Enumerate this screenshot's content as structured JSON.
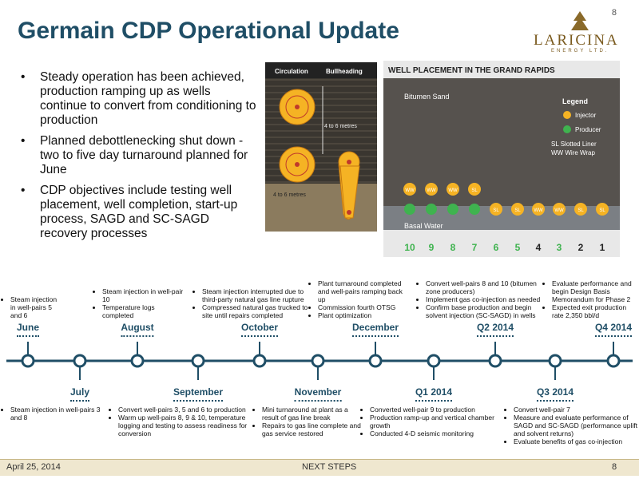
{
  "page_number_top": "8",
  "title": "Germain CDP Operational Update",
  "logo": {
    "name": "LARICINA",
    "tagline": "ENERGY LTD."
  },
  "bullets": [
    "Steady operation has been achieved, production ramping up as wells continue to convert from conditioning to production",
    "Planned debottlenecking shut down - two to five day turnaround planned for June",
    "CDP objectives include testing well placement, well completion, start-up process, SAGD and SC-SAGD recovery processes"
  ],
  "well_diagram": {
    "labels": [
      "Circulation",
      "Bullheading"
    ],
    "dimension_labels": [
      "4 to 6 metres",
      "4 to 6 metres"
    ]
  },
  "well_placement": {
    "title": "WELL PLACEMENT IN THE GRAND RAPIDS",
    "bitumen_sand": "Bitumen Sand",
    "basal_water": "Basal Water",
    "legend": {
      "title": "Legend",
      "items": [
        "Injector",
        "Producer"
      ],
      "abbrevs": [
        "SL  Slotted Liner",
        "WW  Wire Wrap"
      ]
    },
    "injector_tags": [
      "WW",
      "WW",
      "WW",
      "SL"
    ],
    "producer_tags": [
      "SL",
      "SL",
      "WW",
      "WW",
      "SL",
      "SL"
    ],
    "numbers": [
      "10",
      "9",
      "8",
      "7",
      "6",
      "5",
      "4",
      "3",
      "2",
      "1"
    ]
  },
  "timeline": [
    {
      "label": "June",
      "notes": [
        "Steam injection in well-pairs 5 and 6"
      ]
    },
    {
      "label": "July",
      "notes": [
        "Steam injection in well-pairs 3 and 8"
      ]
    },
    {
      "label": "August",
      "notes": [
        "Steam injection in well-pair 10",
        "Temperature logs completed"
      ]
    },
    {
      "label": "September",
      "notes": [
        "Convert well-pairs 3, 5 and 6 to production",
        "Warm up well-pairs 8, 9 & 10, temperature logging and testing to assess readiness for conversion"
      ]
    },
    {
      "label": "October",
      "notes": [
        "Steam injection interrupted due to third-party natural gas line rupture",
        "Compressed natural gas trucked to site until repairs completed"
      ]
    },
    {
      "label": "November",
      "notes": [
        "Mini turnaround at plant as a result of gas line break",
        "Repairs to gas line complete and gas service restored"
      ]
    },
    {
      "label": "December",
      "notes": [
        "Plant turnaround completed and well-pairs ramping back up",
        "Commission fourth OTSG",
        "Plant optimization"
      ]
    },
    {
      "label": "Q1 2014",
      "notes": [
        "Converted well-pair 9 to production",
        "Production ramp-up and vertical chamber growth",
        "Conducted 4-D seismic monitoring"
      ]
    },
    {
      "label": "Q2 2014",
      "notes": [
        "Convert well-pairs 8 and 10 (bitumen zone producers)",
        "Implement gas co-injection as needed",
        "Confirm base production and begin solvent injection (SC-SAGD) in wells"
      ]
    },
    {
      "label": "Q3 2014",
      "notes": [
        "Convert well-pair 7",
        "Measure and evaluate performance of SAGD and SC-SAGD (performance uplift and solvent returns)",
        "Evaluate benefits of gas co-injection"
      ]
    },
    {
      "label": "Q4 2014",
      "notes": [
        "Evaluate performance and begin Design Basis Memorandum for Phase 2",
        "Expected exit production rate 2,350 bbl/d"
      ]
    }
  ],
  "footer": {
    "date": "April 25, 2014",
    "center": "NEXT STEPS",
    "page": "8"
  }
}
